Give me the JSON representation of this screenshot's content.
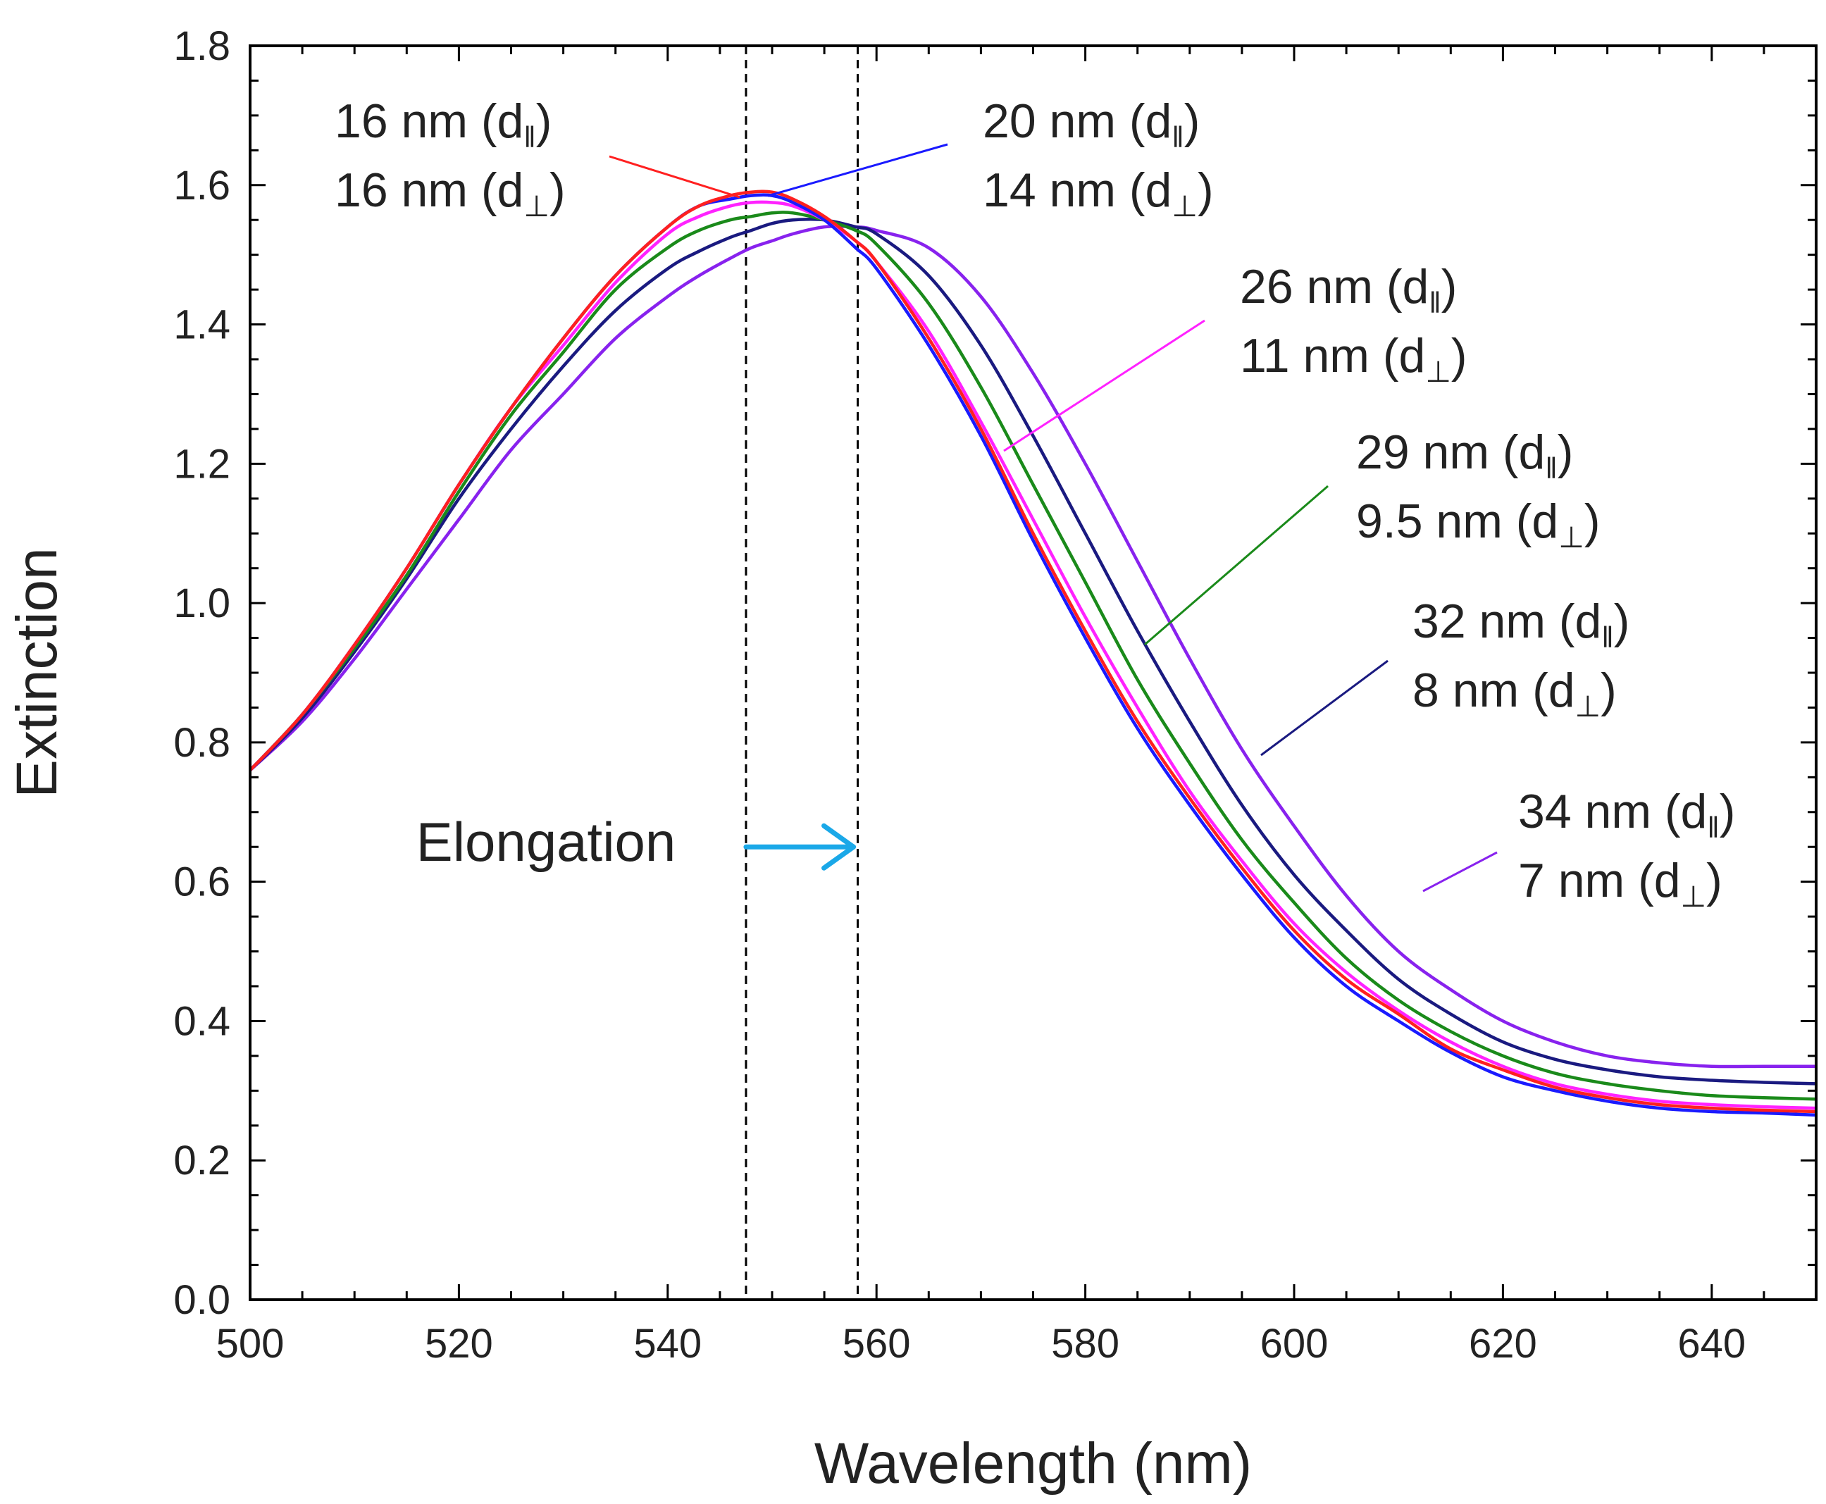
{
  "chart_data": {
    "type": "line",
    "title": "",
    "xlabel": "Wavelength (nm)",
    "ylabel": "Extinction",
    "xlim": [
      500,
      650
    ],
    "ylim": [
      0.0,
      1.8
    ],
    "xticks": [
      500,
      520,
      540,
      560,
      580,
      600,
      620,
      640
    ],
    "yticks": [
      0.0,
      0.2,
      0.4,
      0.6,
      0.8,
      1.0,
      1.2,
      1.4,
      1.6,
      1.8
    ],
    "xtick_labels": [
      "500",
      "520",
      "540",
      "560",
      "580",
      "600",
      "620",
      "640"
    ],
    "ytick_labels": [
      "0.0",
      "0.2",
      "0.4",
      "0.6",
      "0.8",
      "1.0",
      "1.2",
      "1.4",
      "1.6",
      "1.8"
    ],
    "grid": false,
    "x": [
      500,
      505,
      510,
      515,
      520,
      525,
      530,
      535,
      540,
      543,
      546,
      548,
      550,
      552,
      555,
      558,
      560,
      565,
      570,
      575,
      580,
      585,
      590,
      595,
      600,
      605,
      610,
      615,
      620,
      625,
      630,
      635,
      640,
      645,
      650
    ],
    "series": [
      {
        "name": "16 nm (d∥) 16 nm (d⊥)",
        "color": "#ff2020",
        "values": [
          0.76,
          0.84,
          0.94,
          1.05,
          1.17,
          1.28,
          1.38,
          1.47,
          1.54,
          1.57,
          1.585,
          1.59,
          1.59,
          1.58,
          1.555,
          1.52,
          1.49,
          1.38,
          1.25,
          1.1,
          0.96,
          0.83,
          0.72,
          0.62,
          0.53,
          0.46,
          0.41,
          0.36,
          0.33,
          0.305,
          0.29,
          0.28,
          0.275,
          0.272,
          0.27
        ]
      },
      {
        "name": "20 nm (d∥) 14 nm (d⊥)",
        "color": "#1a1aff",
        "values": [
          0.76,
          0.84,
          0.94,
          1.05,
          1.17,
          1.28,
          1.38,
          1.47,
          1.54,
          1.57,
          1.58,
          1.585,
          1.585,
          1.575,
          1.55,
          1.51,
          1.48,
          1.37,
          1.24,
          1.09,
          0.95,
          0.82,
          0.71,
          0.61,
          0.52,
          0.45,
          0.4,
          0.355,
          0.32,
          0.3,
          0.285,
          0.275,
          0.27,
          0.268,
          0.265
        ]
      },
      {
        "name": "26 nm (d∥) 11 nm (d⊥)",
        "color": "#ff22ff",
        "values": [
          0.76,
          0.84,
          0.94,
          1.05,
          1.17,
          1.28,
          1.37,
          1.46,
          1.53,
          1.555,
          1.57,
          1.575,
          1.575,
          1.57,
          1.55,
          1.52,
          1.49,
          1.39,
          1.26,
          1.12,
          0.98,
          0.85,
          0.73,
          0.63,
          0.54,
          0.47,
          0.415,
          0.37,
          0.335,
          0.31,
          0.295,
          0.285,
          0.28,
          0.277,
          0.275
        ]
      },
      {
        "name": "29 nm (d∥) 9.5 nm (d⊥)",
        "color": "#1a8a1a",
        "values": [
          0.76,
          0.84,
          0.935,
          1.04,
          1.16,
          1.27,
          1.36,
          1.45,
          1.51,
          1.535,
          1.55,
          1.555,
          1.56,
          1.56,
          1.55,
          1.535,
          1.515,
          1.43,
          1.31,
          1.17,
          1.03,
          0.89,
          0.77,
          0.66,
          0.57,
          0.49,
          0.43,
          0.385,
          0.35,
          0.325,
          0.31,
          0.3,
          0.293,
          0.29,
          0.288
        ]
      },
      {
        "name": "32 nm (d∥) 8 nm (d⊥)",
        "color": "#1a1a80",
        "values": [
          0.76,
          0.835,
          0.93,
          1.035,
          1.15,
          1.25,
          1.34,
          1.42,
          1.48,
          1.505,
          1.525,
          1.535,
          1.545,
          1.55,
          1.55,
          1.54,
          1.53,
          1.47,
          1.37,
          1.24,
          1.1,
          0.96,
          0.83,
          0.71,
          0.61,
          0.53,
          0.46,
          0.41,
          0.37,
          0.345,
          0.33,
          0.32,
          0.315,
          0.312,
          0.31
        ]
      },
      {
        "name": "34 nm (d∥) 7 nm (d⊥)",
        "color": "#8822ee",
        "values": [
          0.76,
          0.83,
          0.92,
          1.02,
          1.12,
          1.22,
          1.3,
          1.38,
          1.44,
          1.47,
          1.495,
          1.51,
          1.52,
          1.53,
          1.54,
          1.54,
          1.535,
          1.51,
          1.44,
          1.33,
          1.2,
          1.06,
          0.92,
          0.79,
          0.68,
          0.58,
          0.5,
          0.445,
          0.4,
          0.37,
          0.35,
          0.34,
          0.335,
          0.335,
          0.335
        ]
      }
    ],
    "legend": [
      {
        "line1": "16 nm (d",
        "sub1": "‖",
        "line2": "16 nm (d",
        "sub2": "⊥",
        "close": ")",
        "color": "#ff2020"
      },
      {
        "line1": "20 nm (d",
        "sub1": "‖",
        "line2": "14 nm (d",
        "sub2": "⊥",
        "close": ")",
        "color": "#1a1aff"
      },
      {
        "line1": "26 nm (d",
        "sub1": "‖",
        "line2": "11 nm (d",
        "sub2": "⊥",
        "close": ")",
        "color": "#ff22ff"
      },
      {
        "line1": "29 nm (d",
        "sub1": "‖",
        "line2": "9.5 nm (d",
        "sub2": "⊥",
        "close": ")",
        "color": "#1a8a1a"
      },
      {
        "line1": "32 nm (d",
        "sub1": "‖",
        "line2": "8 nm (d",
        "sub2": "⊥",
        "close": ")",
        "color": "#1a1a80"
      },
      {
        "line1": "34 nm (d",
        "sub1": "‖",
        "line2": "7 nm (d",
        "sub2": "⊥",
        "close": ")",
        "color": "#8822ee"
      }
    ],
    "reference_lines_x": [
      547.5,
      558.2
    ],
    "annotation": {
      "text": "Elongation",
      "arrow_from_x": 547.5,
      "arrow_to_x": 558.2,
      "arrow_y": 0.65,
      "arrow_color": "#1aa8e8"
    }
  }
}
